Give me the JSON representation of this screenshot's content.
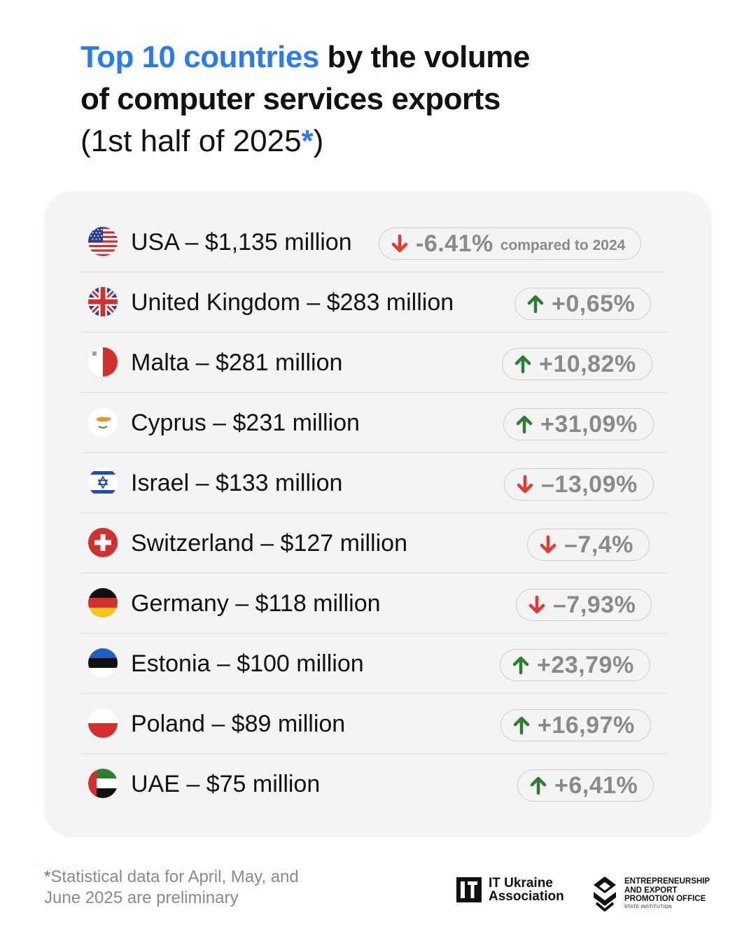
{
  "title": {
    "highlight": "Top 10 countries",
    "line1_rest": " by the volume",
    "line2": "of computer services exports",
    "sub_pre": "(1st half of 2025",
    "sub_star": "*",
    "sub_post": ")"
  },
  "rows": [
    {
      "label": "USA – $1,135 million",
      "change": "-6.41%",
      "compare": "compared to 2024",
      "direction": "down",
      "flag_icon": "usa-flag-icon"
    },
    {
      "label": "United Kingdom – $283 million",
      "change": "+0,65%",
      "direction": "up",
      "flag_icon": "uk-flag-icon"
    },
    {
      "label": "Malta – $281 million",
      "change": "+10,82%",
      "direction": "up",
      "flag_icon": "malta-flag-icon"
    },
    {
      "label": "Cyprus – $231 million",
      "change": "+31,09%",
      "direction": "up",
      "flag_icon": "cyprus-flag-icon"
    },
    {
      "label": "Israel – $133 million",
      "change": "–13,09%",
      "direction": "down",
      "flag_icon": "israel-flag-icon"
    },
    {
      "label": "Switzerland – $127 million",
      "change": "–7,4%",
      "direction": "down",
      "flag_icon": "switzerland-flag-icon"
    },
    {
      "label": "Germany – $118 million",
      "change": "–7,93%",
      "direction": "down",
      "flag_icon": "germany-flag-icon"
    },
    {
      "label": "Estonia – $100 million",
      "change": "+23,79%",
      "direction": "up",
      "flag_icon": "estonia-flag-icon"
    },
    {
      "label": "Poland – $89 million",
      "change": "+16,97%",
      "direction": "up",
      "flag_icon": "poland-flag-icon"
    },
    {
      "label": "UAE – $75 million",
      "change": "+6,41%",
      "direction": "up",
      "flag_icon": "uae-flag-icon"
    }
  ],
  "colors": {
    "accent": "#2b7bf0",
    "up_arrow": "#2e7d32",
    "down_arrow": "#e53935",
    "card_bg": "#f4f4f4"
  },
  "footnote": {
    "star": "*",
    "text": "Statistical data for April, May, and June 2025 are preliminary"
  },
  "logos": {
    "itua_line1": "IT Ukraine",
    "itua_line2": "Association",
    "epo_line1": "ENTREPRENEURSHIP",
    "epo_line2": "AND EXPORT",
    "epo_line3": "PROMOTION OFFICE",
    "epo_line4": "STATE INSTITUTION"
  }
}
